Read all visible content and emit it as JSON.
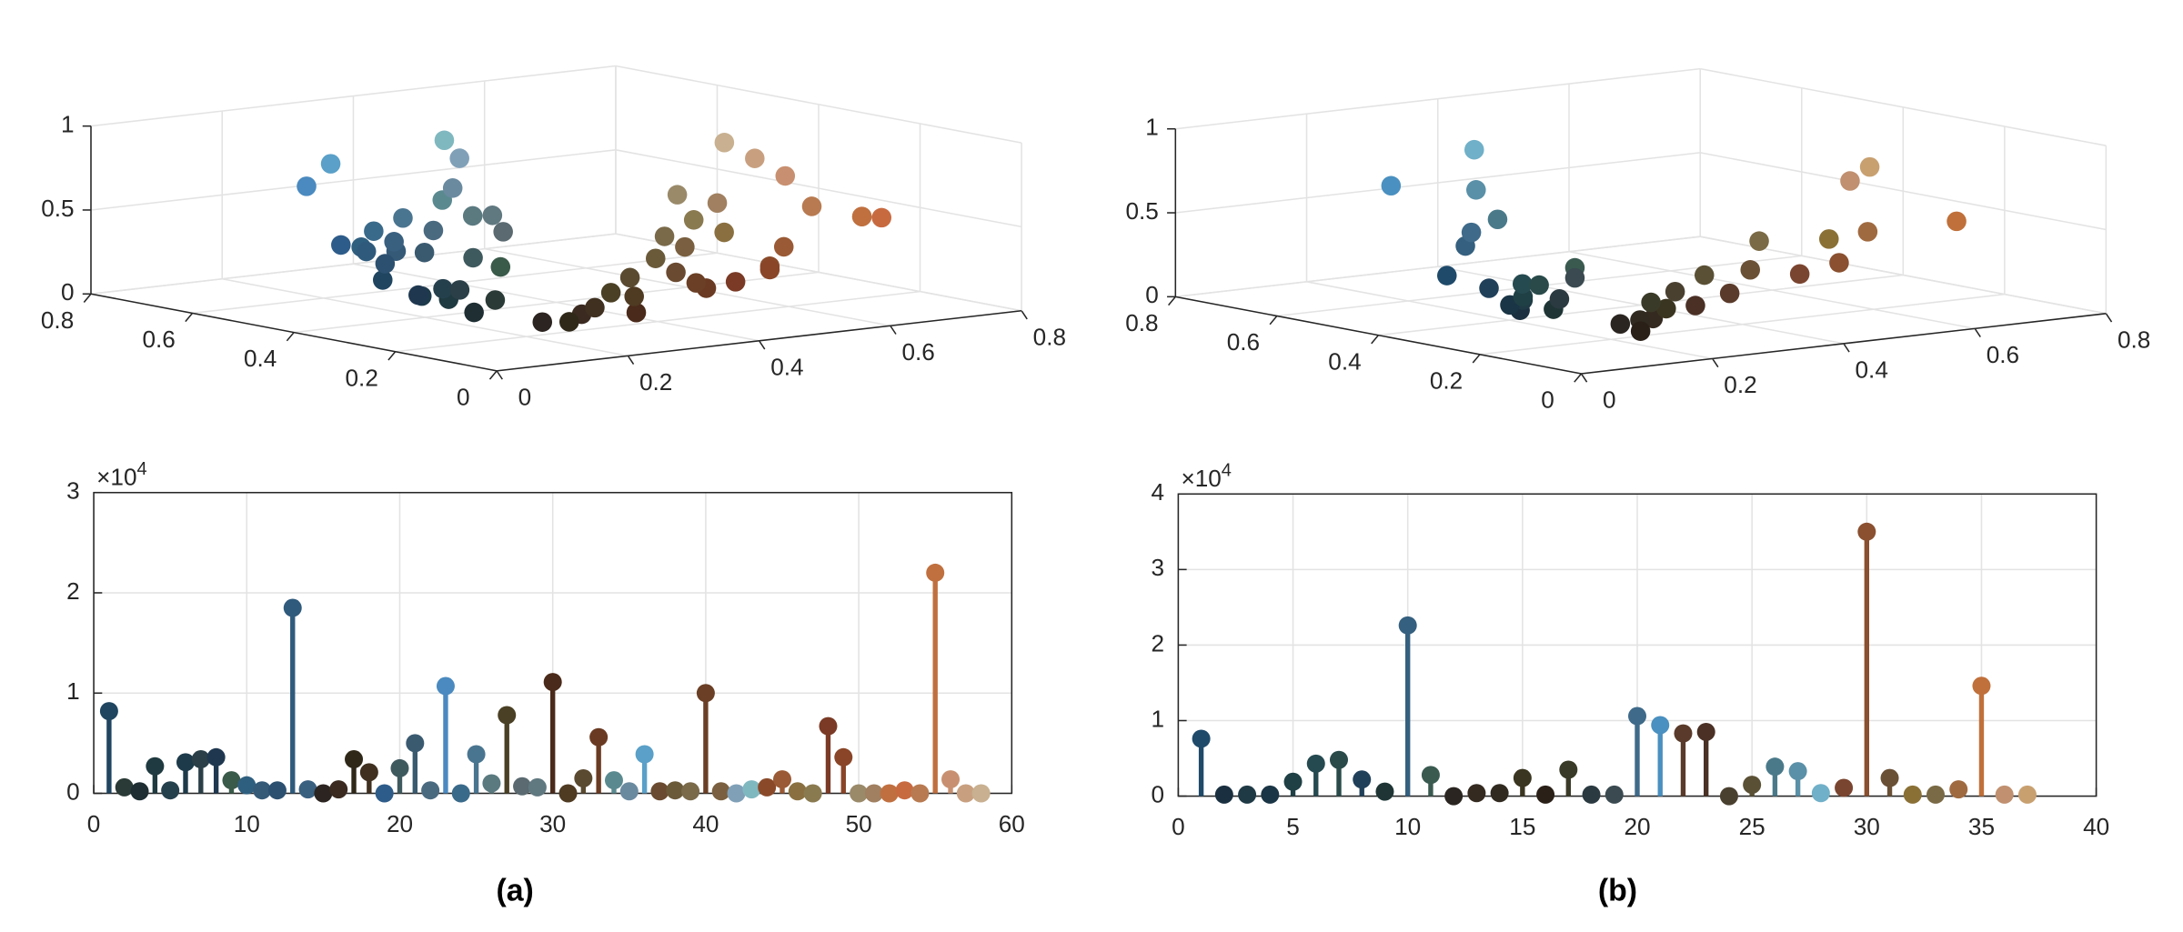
{
  "captions": [
    "(a)",
    "(b)"
  ],
  "chart_data": [
    {
      "type": "scatter3d",
      "xlim": [
        0,
        0.8
      ],
      "xticks": [
        0,
        0.2,
        0.4,
        0.6,
        0.8
      ],
      "ylim": [
        0,
        0.8
      ],
      "yticks": [
        0,
        0.2,
        0.4,
        0.6,
        0.8
      ],
      "zlim": [
        0,
        1
      ],
      "zticks": [
        0,
        0.5,
        1
      ],
      "grid": true,
      "x": [
        0.12,
        0.16,
        0.12,
        0.12,
        0.15,
        0.11,
        0.16,
        0.12,
        0.23,
        0.18,
        0.21,
        0.17,
        0.18,
        0.23,
        0.17,
        0.23,
        0.18,
        0.25,
        0.18,
        0.25,
        0.23,
        0.29,
        0.29,
        0.23,
        0.29,
        0.35,
        0.29,
        0.35,
        0.38,
        0.29,
        0.31,
        0.35,
        0.42,
        0.35,
        0.42,
        0.35,
        0.42,
        0.42,
        0.48,
        0.42,
        0.48,
        0.5,
        0.5,
        0.54,
        0.6,
        0.54,
        0.54,
        0.48,
        0.54,
        0.6,
        0.63,
        0.75,
        0.78,
        0.72,
        0.75,
        0.78,
        0.78,
        0.78
      ],
      "y": [
        0.38,
        0.21,
        0.2,
        0.25,
        0.3,
        0.29,
        0.28,
        0.31,
        0.29,
        0.5,
        0.47,
        0.44,
        0.49,
        0.5,
        0.13,
        0.13,
        0.09,
        0.13,
        0.54,
        0.37,
        0.44,
        0.5,
        0.75,
        0.54,
        0.56,
        0.5,
        0.15,
        0.44,
        0.5,
        0.1,
        0.13,
        0.19,
        0.13,
        0.56,
        0.63,
        0.78,
        0.19,
        0.23,
        0.29,
        0.15,
        0.25,
        0.72,
        0.75,
        0.16,
        0.21,
        0.25,
        0.31,
        0.15,
        0.16,
        0.42,
        0.38,
        0.25,
        0.25,
        0.31,
        0.25,
        0.44,
        0.5,
        0.56
      ],
      "z": [
        0.27,
        0.23,
        0.18,
        0.23,
        0.25,
        0.23,
        0.25,
        0.22,
        0.35,
        0.37,
        0.35,
        0.31,
        0.35,
        0.38,
        0.14,
        0.16,
        0.16,
        0.19,
        0.36,
        0.35,
        0.35,
        0.42,
        0.54,
        0.42,
        0.46,
        0.48,
        0.25,
        0.42,
        0.47,
        0.16,
        0.23,
        0.29,
        0.23,
        0.54,
        0.54,
        0.63,
        0.29,
        0.35,
        0.42,
        0.25,
        0.38,
        0.63,
        0.72,
        0.29,
        0.35,
        0.44,
        0.48,
        0.23,
        0.27,
        0.54,
        0.5,
        0.44,
        0.42,
        0.48,
        0.44,
        0.56,
        0.63,
        0.69
      ],
      "colors": [
        "#1f4560",
        "#2a3a36",
        "#1e2e33",
        "#1f3a40",
        "#25404d",
        "#1d3a4a",
        "#2a3f47",
        "#1f3850",
        "#3a5a4a",
        "#2f5f7f",
        "#355a78",
        "#2c5070",
        "#2f5a7c",
        "#3a6080",
        "#2b2420",
        "#3a2a20",
        "#2f2818",
        "#3f3020",
        "#2e5c8a",
        "#3f5a5f",
        "#3a5a70",
        "#4a6a80",
        "#4a8ac0",
        "#3a6a8a",
        "#4a7590",
        "#5a7a80",
        "#4a4025",
        "#5a6a70",
        "#607880",
        "#4a2a1a",
        "#4f3a22",
        "#5a4a30",
        "#6a3a22",
        "#5a8a90",
        "#6a8aa0",
        "#5aa0c8",
        "#6a4a30",
        "#6a5a3a",
        "#7a6a4a",
        "#6a3f25",
        "#7a6040",
        "#80a0b8",
        "#80b8c0",
        "#8a4a2a",
        "#9a5a35",
        "#8a7040",
        "#8a7a50",
        "#7a3a25",
        "#8a4528",
        "#9a8a6a",
        "#a08060",
        "#c07040",
        "#c86a40",
        "#b87a50",
        "#c0703f",
        "#c89070",
        "#c8a080",
        "#c8b090"
      ]
    },
    {
      "type": "scatter3d",
      "xlim": [
        0,
        0.8
      ],
      "xticks": [
        0,
        0.2,
        0.4,
        0.6,
        0.8
      ],
      "ylim": [
        0,
        0.8
      ],
      "yticks": [
        0,
        0.2,
        0.4,
        0.6,
        0.8
      ],
      "zlim": [
        0,
        1
      ],
      "zticks": [
        0,
        0.5,
        1
      ],
      "grid": true,
      "x": [
        0.12,
        0.1,
        0.12,
        0.1,
        0.12,
        0.15,
        0.16,
        0.13,
        0.12,
        0.21,
        0.23,
        0.16,
        0.21,
        0.19,
        0.23,
        0.16,
        0.23,
        0.16,
        0.23,
        0.25,
        0.29,
        0.35,
        0.29,
        0.29,
        0.35,
        0.29,
        0.35,
        0.44,
        0.48,
        0.54,
        0.42,
        0.54,
        0.48,
        0.63,
        0.75,
        0.75,
        0.78
      ],
      "y": [
        0.42,
        0.25,
        0.27,
        0.27,
        0.27,
        0.31,
        0.29,
        0.35,
        0.21,
        0.5,
        0.31,
        0.13,
        0.13,
        0.13,
        0.13,
        0.09,
        0.16,
        0.25,
        0.31,
        0.54,
        0.75,
        0.16,
        0.15,
        0.19,
        0.21,
        0.54,
        0.66,
        0.78,
        0.19,
        0.19,
        0.21,
        0.21,
        0.27,
        0.25,
        0.23,
        0.44,
        0.44
      ],
      "z": [
        0.29,
        0.19,
        0.23,
        0.21,
        0.25,
        0.29,
        0.29,
        0.25,
        0.21,
        0.38,
        0.35,
        0.15,
        0.16,
        0.16,
        0.21,
        0.13,
        0.23,
        0.23,
        0.29,
        0.42,
        0.56,
        0.23,
        0.19,
        0.25,
        0.31,
        0.48,
        0.56,
        0.69,
        0.27,
        0.31,
        0.31,
        0.44,
        0.42,
        0.42,
        0.44,
        0.56,
        0.63
      ],
      "colors": [
        "#1f4a6a",
        "#1a3040",
        "#1f3a45",
        "#1a3545",
        "#1f4045",
        "#254a50",
        "#2a4a4a",
        "#20405a",
        "#1f3535",
        "#35607f",
        "#3a5a50",
        "#2a2520",
        "#352a20",
        "#302a20",
        "#3a3520",
        "#2a2018",
        "#3a3a28",
        "#2a3a40",
        "#3a4a50",
        "#3f6a8a",
        "#4a90c0",
        "#5a3a2a",
        "#4a3025",
        "#4a4030",
        "#5a5035",
        "#4a7a8a",
        "#5a90a8",
        "#70b0c8",
        "#7a4530",
        "#8a5030",
        "#6a5035",
        "#8a7035",
        "#7a6a45",
        "#a06a40",
        "#c0703a",
        "#c09070",
        "#c8a070"
      ]
    },
    {
      "type": "stem",
      "xlim": [
        0,
        60
      ],
      "xticks": [
        0,
        10,
        20,
        30,
        40,
        50,
        60
      ],
      "ylim": [
        0,
        3
      ],
      "yticks": [
        0,
        1,
        2,
        3
      ],
      "grid": true,
      "y_multiplier": {
        "base": "×10",
        "power": "4"
      },
      "x": [
        1,
        2,
        3,
        4,
        5,
        6,
        7,
        8,
        9,
        10,
        11,
        12,
        13,
        14,
        15,
        16,
        17,
        18,
        19,
        20,
        21,
        22,
        23,
        24,
        25,
        26,
        27,
        28,
        29,
        30,
        31,
        32,
        33,
        34,
        35,
        36,
        37,
        38,
        39,
        40,
        41,
        42,
        43,
        44,
        45,
        46,
        47,
        48,
        49,
        50,
        51,
        52,
        53,
        54,
        55,
        56,
        57,
        58
      ],
      "values": [
        0.82,
        0.06,
        0.02,
        0.27,
        0.03,
        0.31,
        0.34,
        0.36,
        0.13,
        0.08,
        0.03,
        0.03,
        1.85,
        0.04,
        0,
        0.04,
        0.34,
        0.21,
        0,
        0.25,
        0.5,
        0.03,
        1.07,
        0,
        0.39,
        0.1,
        0.78,
        0.07,
        0.06,
        1.11,
        0,
        0.15,
        0.56,
        0.13,
        0.02,
        0.39,
        0.02,
        0.03,
        0.02,
        1.0,
        0.02,
        0,
        0.04,
        0.06,
        0.14,
        0.02,
        0,
        0.67,
        0.36,
        0,
        0,
        0,
        0.03,
        0,
        2.2,
        0.14,
        0,
        0
      ],
      "colors": [
        "#1f4560",
        "#2a3a36",
        "#1e2e33",
        "#1f3a40",
        "#25404d",
        "#1d3a4a",
        "#2a3f47",
        "#1f3850",
        "#3a5a4a",
        "#2f5f7f",
        "#355a78",
        "#2c5070",
        "#2f5a7c",
        "#3a6080",
        "#2b2420",
        "#3a2a20",
        "#2f2818",
        "#3f3020",
        "#2e5c8a",
        "#3f5a5f",
        "#3a5a70",
        "#4a6a80",
        "#4a8ac0",
        "#3a6a8a",
        "#4a7590",
        "#5a7a80",
        "#4a4025",
        "#5a6a70",
        "#607880",
        "#4a2a1a",
        "#4f3a22",
        "#5a4a30",
        "#6a3a22",
        "#5a8a90",
        "#6a8aa0",
        "#5aa0c8",
        "#6a4a30",
        "#6a5a3a",
        "#7a6a4a",
        "#6a3f25",
        "#7a6040",
        "#80a0b8",
        "#80b8c0",
        "#8a4a2a",
        "#9a5a35",
        "#8a7040",
        "#8a7a50",
        "#7a3a25",
        "#8a4528",
        "#9a8a6a",
        "#a08060",
        "#c07040",
        "#c86a40",
        "#b87a50",
        "#c0703f",
        "#c89070",
        "#c8a080",
        "#c8b090"
      ]
    },
    {
      "type": "stem",
      "xlim": [
        0,
        40
      ],
      "xticks": [
        0,
        5,
        10,
        15,
        20,
        25,
        30,
        35,
        40
      ],
      "ylim": [
        0,
        4
      ],
      "yticks": [
        0,
        1,
        2,
        3,
        4
      ],
      "grid": true,
      "y_multiplier": {
        "base": "×10",
        "power": "4"
      },
      "x": [
        1,
        2,
        3,
        4,
        5,
        6,
        7,
        8,
        9,
        10,
        11,
        12,
        13,
        14,
        15,
        16,
        17,
        18,
        19,
        20,
        21,
        22,
        23,
        24,
        25,
        26,
        27,
        28,
        29,
        30,
        31,
        32,
        33,
        34,
        35,
        36,
        37
      ],
      "values": [
        0.76,
        0.02,
        0.02,
        0.02,
        0.19,
        0.43,
        0.48,
        0.22,
        0.06,
        2.26,
        0.28,
        0,
        0.04,
        0.04,
        0.24,
        0.02,
        0.35,
        0.02,
        0.02,
        1.06,
        0.94,
        0.83,
        0.85,
        0,
        0.15,
        0.39,
        0.33,
        0.04,
        0.11,
        3.5,
        0.24,
        0.02,
        0.02,
        0.09,
        1.46,
        0.02,
        0.02
      ],
      "colors": [
        "#1f4a6a",
        "#1a3040",
        "#1f3a45",
        "#1a3545",
        "#1f4045",
        "#254a50",
        "#2a4a4a",
        "#20405a",
        "#1f3535",
        "#35607f",
        "#3a5a50",
        "#2a2520",
        "#352a20",
        "#302a20",
        "#3a3520",
        "#2a2018",
        "#3a3a28",
        "#2a3a40",
        "#3a4a50",
        "#3f6a8a",
        "#4a90c0",
        "#5a3a2a",
        "#4a3025",
        "#4a4030",
        "#5a5035",
        "#4a7a8a",
        "#5a90a8",
        "#70b0c8",
        "#7a4530",
        "#8a5030",
        "#6a5035",
        "#8a7035",
        "#7a6a45",
        "#a06a40",
        "#c0703a",
        "#c09070",
        "#c8a070"
      ]
    }
  ]
}
